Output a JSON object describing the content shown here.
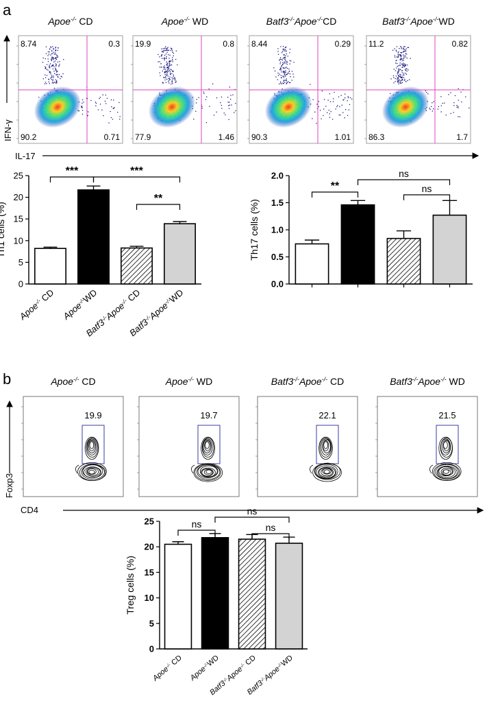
{
  "panel_a": {
    "label": "a",
    "flow_titles": [
      {
        "strain": "Apoe",
        "sup": "-/-",
        "diet": " CD"
      },
      {
        "strain": "Apoe",
        "sup": "-/-",
        "diet": " WD"
      },
      {
        "strain": "Batf3",
        "sup": "-/-",
        "strain2": "Apoe",
        "sup2": "-/-",
        "diet": "CD"
      },
      {
        "strain": "Batf3",
        "sup": "-/-",
        "strain2": "Apoe",
        "sup2": "-/-",
        "diet": "WD"
      }
    ],
    "flow_quadrants": [
      {
        "tl": "8.74",
        "tr": "0.3",
        "bl": "90.2",
        "br": "0.71"
      },
      {
        "tl": "19.9",
        "tr": "0.8",
        "bl": "77.9",
        "br": "1.46"
      },
      {
        "tl": "8.44",
        "tr": "0.29",
        "bl": "90.3",
        "br": "1.01"
      },
      {
        "tl": "11.2",
        "tr": "0.82",
        "bl": "86.3",
        "br": "1.7"
      }
    ],
    "y_axis_label": "IFN-γ",
    "x_axis_label": "IL-17"
  },
  "panel_b": {
    "label": "b",
    "flow_titles": [
      {
        "strain": "Apoe",
        "sup": "-/-",
        "diet": " CD"
      },
      {
        "strain": "Apoe",
        "sup": "-/-",
        "diet": " WD"
      },
      {
        "strain": "Batf3",
        "sup": "-/-",
        "strain2": "Apoe",
        "sup2": "-/-",
        "diet": " CD"
      },
      {
        "strain": "Batf3",
        "sup": "-/-",
        "strain2": "Apoe",
        "sup2": "-/-",
        "diet": " WD"
      }
    ],
    "gate_values": [
      "19.9",
      "19.7",
      "22.1",
      "21.5"
    ],
    "y_axis_label": "Foxp3",
    "x_axis_label": "CD4"
  },
  "categories": [
    {
      "strain": "Apoe",
      "sup": "-/-",
      "diet": " CD"
    },
    {
      "strain": "Apoe",
      "sup": "-/-",
      "diet": "WD"
    },
    {
      "strain": "Batf3",
      "sup": "-/-",
      "strain2": "Apoe",
      "sup2": "-/-",
      "diet": " CD"
    },
    {
      "strain": "Batf3",
      "sup": "-/-",
      "strain2": "Apoe",
      "sup2": "-/-",
      "diet": "WD"
    }
  ],
  "colors": {
    "bar_fills": [
      "#ffffff",
      "#000000",
      "hatch",
      "#d3d3d3"
    ],
    "quadrant_line": "#e040c0",
    "gate_line": "#3a3aa8",
    "ink": "#000000"
  },
  "chart_data": [
    {
      "type": "bar",
      "title": "",
      "ylabel": "Th1 cells (%)",
      "categories": [
        "Apoe-/- CD",
        "Apoe-/- WD",
        "Batf3-/-Apoe-/- CD",
        "Batf3-/-Apoe-/- WD"
      ],
      "values": [
        8.2,
        21.7,
        8.3,
        13.9
      ],
      "errors": [
        0.3,
        0.9,
        0.4,
        0.5
      ],
      "ylim": [
        0,
        25
      ],
      "yticks": [
        "0",
        "5",
        "10",
        "15",
        "20",
        "25"
      ],
      "significance": [
        {
          "from": 0,
          "to": 1,
          "label": "***"
        },
        {
          "from": 1,
          "to": 3,
          "label": "***"
        },
        {
          "from": 2,
          "to": 3,
          "label": "**"
        }
      ]
    },
    {
      "type": "bar",
      "title": "",
      "ylabel": "Th17 cells (%)",
      "categories": [
        "Apoe-/- CD",
        "Apoe-/- WD",
        "Batf3-/-Apoe-/- CD",
        "Batf3-/-Apoe-/- WD"
      ],
      "values": [
        0.74,
        1.46,
        0.84,
        1.27
      ],
      "errors": [
        0.07,
        0.08,
        0.14,
        0.27
      ],
      "ylim": [
        0,
        2.0
      ],
      "yticks": [
        "0.0",
        "0.5",
        "1.0",
        "1.5",
        "2.0"
      ],
      "significance": [
        {
          "from": 0,
          "to": 1,
          "label": "**"
        },
        {
          "from": 1,
          "to": 3,
          "label": "ns"
        },
        {
          "from": 2,
          "to": 3,
          "label": "ns"
        }
      ]
    },
    {
      "type": "bar",
      "title": "",
      "ylabel": "Treg cells (%)",
      "categories": [
        "Apoe-/- CD",
        "Apoe-/- WD",
        "Batf3-/-Apoe-/- CD",
        "Batf3-/-Apoe-/- WD"
      ],
      "values": [
        20.5,
        21.8,
        21.5,
        20.7
      ],
      "errors": [
        0.5,
        0.8,
        0.9,
        1.2
      ],
      "ylim": [
        0,
        25
      ],
      "yticks": [
        "0",
        "5",
        "10",
        "15",
        "20",
        "25"
      ],
      "significance": [
        {
          "from": 0,
          "to": 1,
          "label": "ns"
        },
        {
          "from": 1,
          "to": 3,
          "label": "ns"
        },
        {
          "from": 2,
          "to": 3,
          "label": "ns"
        }
      ]
    }
  ]
}
